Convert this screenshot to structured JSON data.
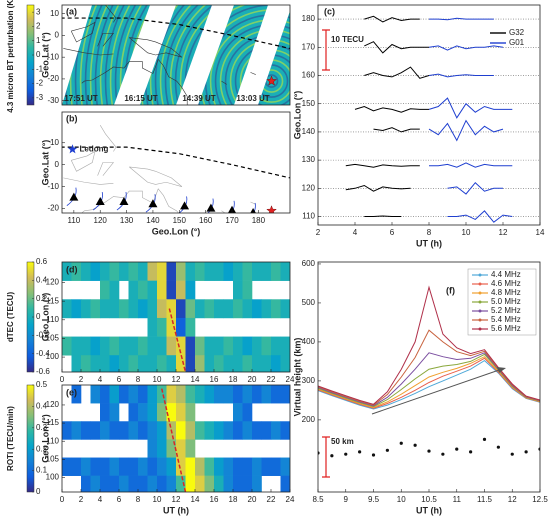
{
  "chart_data": [
    {
      "type": "map",
      "panel_label": "(a)",
      "ylabel": "Geo.Lat (°)",
      "colorbar_label": "4.3 micron BT perturbation (K)",
      "clim": [
        -3.5,
        3.5
      ],
      "cticks": [
        -3,
        -2,
        -1,
        0,
        1,
        2,
        3
      ],
      "colormap": [
        "#352a87",
        "#0f5cdd",
        "#1481d6",
        "#06a4ca",
        "#2eb7a4",
        "#87bf77",
        "#d1bb59",
        "#f9fb0e"
      ],
      "xlim": [
        105.5,
        192
      ],
      "ylim": [
        -32,
        14
      ],
      "yticks": [
        -30,
        -20,
        -10,
        0,
        10
      ],
      "time_labels": [
        "17:51 UT",
        "16:15 UT",
        "14:39 UT",
        "13:03 UT"
      ],
      "event": {
        "x": 185,
        "y": -21,
        "color": "#e02020"
      }
    },
    {
      "type": "map",
      "panel_label": "(b)",
      "xlabel": "Geo.Lon (°)",
      "ylabel": "Geo.Lat (°)",
      "xlim": [
        105.5,
        192
      ],
      "ylim": [
        -22,
        24
      ],
      "xticks": [
        110,
        120,
        130,
        140,
        150,
        160,
        170,
        180
      ],
      "yticks": [
        -20,
        -10,
        0,
        10
      ],
      "site": {
        "name": "Ledong",
        "x": 109.5,
        "y": 7,
        "color": "#1f3fd0"
      },
      "stations": {
        "x": [
          110,
          120,
          129,
          140,
          152,
          162,
          170,
          178
        ],
        "y": [
          -15,
          -17,
          -17,
          -18,
          -19,
          -20,
          -21,
          -22
        ],
        "color": "#000000"
      },
      "event": {
        "x": 185,
        "y": -21,
        "color": "#e02020"
      }
    },
    {
      "type": "tec",
      "panel_label": "(c)",
      "xlabel": "UT (h)",
      "ylabel": "Geo.Lon (°)",
      "scale_label": "10 TECU",
      "scale_color": "#e02020",
      "xlim": [
        2,
        14
      ],
      "ylim": [
        107,
        185
      ],
      "xticks": [
        2,
        4,
        6,
        8,
        10,
        12,
        14
      ],
      "yticks": [
        110,
        120,
        130,
        140,
        150,
        160,
        170,
        180
      ],
      "grid": true,
      "series": [
        {
          "name": "G32",
          "color": "#000000",
          "x": [
            3,
            3.5,
            4,
            4.5,
            5,
            5.5,
            6,
            6.5,
            7,
            7.5,
            8
          ],
          "tracks": [
            [
              null,
              null,
              null,
              180,
              181,
              179,
              180.5,
              179.5,
              180,
              180,
              null
            ],
            [
              null,
              null,
              null,
              170.5,
              172,
              168,
              171,
              169.5,
              170,
              170,
              170
            ],
            [
              null,
              null,
              null,
              160,
              161,
              160,
              159.5,
              161,
              163,
              159,
              160
            ],
            [
              null,
              null,
              148,
              149,
              147.5,
              148.5,
              148,
              147,
              148.2,
              148,
              148
            ],
            [
              null,
              null,
              null,
              null,
              141,
              140.5,
              141.5,
              140,
              141,
              141,
              null
            ],
            [
              null,
              128,
              128.5,
              128,
              127.5,
              128.3,
              128,
              127.8,
              128,
              128,
              null
            ],
            [
              null,
              119.5,
              120,
              121,
              119,
              120.5,
              120,
              119.8,
              120,
              null,
              null
            ],
            [
              null,
              null,
              null,
              110,
              110,
              110.2,
              110,
              110,
              null,
              null,
              null
            ]
          ]
        },
        {
          "name": "G01",
          "color": "#1f3fd0",
          "x": [
            8,
            8.5,
            9,
            9.5,
            10,
            10.5,
            11,
            11.5,
            12,
            12.5,
            13
          ],
          "tracks": [
            [
              180,
              180,
              179.8,
              180.3,
              180,
              180,
              180,
              180,
              null,
              null,
              null
            ],
            [
              170,
              170.5,
              169,
              170.5,
              169.5,
              170,
              170,
              170.5,
              170,
              null,
              null
            ],
            [
              160,
              160.5,
              159.5,
              160,
              160.3,
              160,
              160,
              160,
              null,
              null,
              null
            ],
            [
              148,
              149,
              152,
              145,
              150,
              147,
              149,
              148,
              148,
              148,
              null
            ],
            [
              141,
              139,
              143,
              137,
              144,
              139,
              142,
              140,
              141,
              null,
              null
            ],
            [
              128,
              128,
              128.5,
              127.5,
              129,
              127.5,
              128.5,
              128,
              128,
              128,
              null
            ],
            [
              null,
              null,
              120,
              120.5,
              118,
              122,
              119,
              120,
              120,
              null,
              null
            ],
            [
              null,
              null,
              110,
              110,
              110.5,
              109,
              112,
              108,
              110.5,
              110,
              null
            ]
          ]
        }
      ]
    },
    {
      "type": "heatmap",
      "panel_label": "(d)",
      "ylabel": "Geo.Lon (°)",
      "colorbar_label": "dTEC (TECU)",
      "clim": [
        -0.6,
        0.6
      ],
      "cticks": [
        -0.6,
        -0.4,
        -0.2,
        0,
        0.2,
        0.4,
        0.6
      ],
      "colormap": [
        "#352a87",
        "#0f5cdd",
        "#1481d6",
        "#06a4ca",
        "#2eb7a4",
        "#87bf77",
        "#d1bb59",
        "#f9fb0e"
      ],
      "xlim": [
        0,
        24
      ],
      "ylim": [
        96,
        125.5
      ],
      "xticks": [
        0,
        2,
        4,
        6,
        8,
        10,
        12,
        14,
        16,
        18,
        20,
        22,
        24
      ],
      "yticks": [
        100,
        105,
        110,
        115,
        120
      ],
      "x": [
        0.5,
        1.5,
        2.5,
        3.5,
        4.5,
        5.5,
        6.5,
        7.5,
        8.5,
        9.5,
        10.5,
        11.5,
        12.5,
        13.5,
        14.5,
        15.5,
        16.5,
        17.5,
        18.5,
        19.5,
        20.5,
        21.5,
        22.5,
        23.5
      ],
      "y": [
        123,
        118,
        113,
        108,
        103,
        98
      ],
      "values": [
        [
          0,
          0.1,
          0,
          -0.1,
          0,
          0.1,
          0,
          0.1,
          0,
          0.4,
          0.5,
          -0.5,
          0.3,
          0,
          0.1,
          0,
          0,
          -0.1,
          0,
          0.1,
          0,
          0,
          0.1,
          0
        ],
        [
          null,
          null,
          null,
          null,
          0.1,
          0,
          null,
          0,
          0.1,
          0,
          0.5,
          -0.5,
          0.4,
          -0.1,
          null,
          null,
          null,
          null,
          0,
          0.1,
          null,
          null,
          null,
          null
        ],
        [
          0,
          -0.1,
          0,
          0.1,
          0,
          0,
          0.1,
          0,
          -0.1,
          0,
          0.4,
          0.5,
          -0.5,
          0.2,
          0,
          0.1,
          0,
          0,
          0.1,
          0,
          -0.1,
          0,
          0.1,
          0
        ],
        [
          null,
          null,
          null,
          null,
          null,
          null,
          null,
          null,
          null,
          0,
          0.1,
          0.5,
          -0.4,
          0.1,
          null,
          null,
          null,
          null,
          null,
          null,
          null,
          null,
          null,
          null
        ],
        [
          0.1,
          0,
          0,
          -0.1,
          0,
          0.1,
          0,
          0,
          0.1,
          0,
          0,
          0.4,
          0.5,
          -0.5,
          0.2,
          0,
          0,
          0.1,
          0,
          -0.1,
          0,
          0.1,
          0,
          0
        ],
        [
          null,
          0,
          0.1,
          0,
          0,
          -0.1,
          0,
          0.1,
          0,
          0,
          0.1,
          0,
          0.5,
          -0.5,
          0.3,
          0,
          0.1,
          0,
          0,
          0.1,
          0,
          0,
          -0.1,
          0
        ]
      ],
      "fit_line": {
        "x": [
          11.3,
          13
        ],
        "y": [
          113,
          96
        ],
        "color": "#d62728"
      }
    },
    {
      "type": "heatmap",
      "panel_label": "(e)",
      "xlabel": "UT (h)",
      "ylabel": "Geo.Lon (°)",
      "colorbar_label": "ROTI (TECU/min)",
      "clim": [
        0,
        0.5
      ],
      "cticks": [
        0,
        0.1,
        0.2,
        0.3,
        0.4,
        0.5
      ],
      "colormap": [
        "#352a87",
        "#0f5cdd",
        "#1481d6",
        "#06a4ca",
        "#2eb7a4",
        "#87bf77",
        "#d1bb59",
        "#f9fb0e"
      ],
      "xlim": [
        0,
        24
      ],
      "ylim": [
        96,
        125.5
      ],
      "xticks": [
        0,
        2,
        4,
        6,
        8,
        10,
        12,
        14,
        16,
        18,
        20,
        22,
        24
      ],
      "yticks": [
        100,
        105,
        110,
        115,
        120
      ],
      "x": [
        0.5,
        1.5,
        2.5,
        3.5,
        4.5,
        5.5,
        6.5,
        7.5,
        8.5,
        9.5,
        10.5,
        11.5,
        12.5,
        13.5,
        14.5,
        15.5,
        16.5,
        17.5,
        18.5,
        19.5,
        20.5,
        21.5,
        22.5,
        23.5
      ],
      "y": [
        123,
        118,
        113,
        108,
        103,
        98
      ],
      "values": [
        [
          null,
          0.1,
          null,
          0.15,
          0.1,
          0.2,
          0.1,
          0.15,
          0.1,
          0.2,
          0.3,
          0.45,
          0.4,
          0.3,
          0.25,
          0.2,
          0.15,
          0.15,
          0.1,
          0.15,
          0.1,
          0.15,
          0.1,
          0.1
        ],
        [
          null,
          null,
          null,
          null,
          0.1,
          0.15,
          null,
          0.1,
          0.15,
          0.2,
          0.35,
          0.5,
          0.45,
          0.35,
          null,
          null,
          null,
          null,
          0.15,
          0.1,
          null,
          null,
          null,
          null
        ],
        [
          0.1,
          0.15,
          0.1,
          0.1,
          0.15,
          0.1,
          0.1,
          0.15,
          0.1,
          0.15,
          0.2,
          0.4,
          0.5,
          0.4,
          0.3,
          0.25,
          0.2,
          0.15,
          0.1,
          0.15,
          0.1,
          0.1,
          0.15,
          0.1
        ],
        [
          null,
          null,
          null,
          null,
          null,
          null,
          null,
          null,
          null,
          0.15,
          0.2,
          0.35,
          0.45,
          0.35,
          null,
          null,
          null,
          null,
          null,
          null,
          null,
          null,
          null,
          null
        ],
        [
          0.1,
          0.1,
          0.15,
          0.1,
          0.1,
          0.15,
          0.1,
          0.1,
          0.15,
          0.1,
          0.15,
          0.2,
          0.45,
          0.5,
          0.4,
          0.3,
          0.2,
          0.15,
          0.1,
          0.1,
          0.15,
          0.1,
          0.1,
          0.15
        ],
        [
          null,
          null,
          0.1,
          0.15,
          0.1,
          0.1,
          0.15,
          0.1,
          0.1,
          0.15,
          0.1,
          0.15,
          0.3,
          0.5,
          0.45,
          0.35,
          0.25,
          0.15,
          0.1,
          0.1,
          0.15,
          null,
          null,
          0.1
        ]
      ],
      "fit_line": {
        "x": [
          10.5,
          13
        ],
        "y": [
          124.5,
          96
        ],
        "color": "#d62728"
      }
    },
    {
      "type": "line",
      "panel_label": "(f)",
      "xlabel": "UT (h)",
      "ylabel": "Virtual height (km)",
      "scale_label": "50 km",
      "scale_color": "#e02020",
      "xlim": [
        8.5,
        12.5
      ],
      "ylim": [
        15,
        605
      ],
      "xticks": [
        8.5,
        9,
        9.5,
        10,
        10.5,
        11,
        11.5,
        12,
        12.5
      ],
      "yticks": [
        200,
        300,
        400,
        500,
        600
      ],
      "x": [
        8.5,
        8.75,
        9,
        9.25,
        9.5,
        9.75,
        10,
        10.25,
        10.5,
        10.75,
        11,
        11.25,
        11.5,
        11.75,
        12,
        12.25,
        12.5
      ],
      "series": [
        {
          "name": "4.4 MHz",
          "color": "#4fa8d8",
          "values": [
            275,
            262,
            250,
            238,
            228,
            238,
            252,
            268,
            285,
            300,
            315,
            330,
            352,
            320,
            280,
            255,
            245
          ]
        },
        {
          "name": "4.6 MHz",
          "color": "#e8604c",
          "values": [
            277,
            264,
            252,
            240,
            230,
            242,
            258,
            276,
            296,
            312,
            325,
            338,
            358,
            322,
            282,
            256,
            246
          ]
        },
        {
          "name": "4.8 MHz",
          "color": "#f0a030",
          "values": [
            279,
            266,
            254,
            242,
            232,
            246,
            266,
            288,
            310,
            322,
            332,
            345,
            362,
            325,
            284,
            257,
            247
          ]
        },
        {
          "name": "5.0 MHz",
          "color": "#8aa83c",
          "values": [
            281,
            268,
            256,
            244,
            234,
            252,
            278,
            305,
            330,
            338,
            342,
            350,
            368,
            328,
            286,
            258,
            248
          ]
        },
        {
          "name": "5.2 MHz",
          "color": "#7b4fa0",
          "values": [
            283,
            270,
            258,
            246,
            236,
            258,
            292,
            330,
            372,
            362,
            355,
            358,
            372,
            330,
            288,
            259,
            249
          ]
        },
        {
          "name": "5.4 MHz",
          "color": "#c8623e",
          "values": [
            285,
            272,
            260,
            248,
            238,
            265,
            310,
            360,
            430,
            400,
            375,
            365,
            376,
            332,
            290,
            260,
            250
          ]
        },
        {
          "name": "5.6 MHz",
          "color": "#b0304a",
          "values": [
            287,
            274,
            262,
            250,
            240,
            272,
            330,
            400,
            540,
            420,
            385,
            370,
            380,
            334,
            292,
            261,
            251
          ]
        }
      ],
      "points": {
        "color": "#111111",
        "values": [
          115,
          108,
          112,
          118,
          110,
          122,
          140,
          135,
          120,
          112,
          125,
          118,
          150,
          130,
          112,
          118,
          125
        ]
      }
    }
  ]
}
